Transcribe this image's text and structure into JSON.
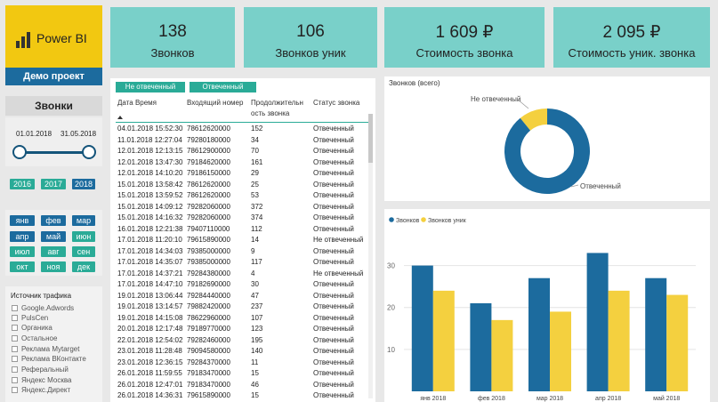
{
  "brand": {
    "name": "Power BI",
    "project": "Демо проект"
  },
  "sidebar": {
    "title": "Звонки",
    "date_from": "01.01.2018",
    "date_to": "31.05.2018",
    "years": [
      "2016",
      "2017",
      "2018"
    ],
    "months": [
      "янв",
      "фев",
      "мар",
      "апр",
      "май",
      "июн",
      "июл",
      "авг",
      "сен",
      "окт",
      "ноя",
      "дек"
    ],
    "traffic_title": "Источник трафика",
    "traffic_sources": [
      "Google.Adwords",
      "PulsCen",
      "Органика",
      "Остальное",
      "Реклама Mytarget",
      "Реклама ВКонтакте",
      "Реферальный",
      "Яндекс Москва",
      "Яндекс.Директ"
    ]
  },
  "kpis": [
    {
      "value": "138",
      "label": "Звонков"
    },
    {
      "value": "106",
      "label": "Звонков уник"
    },
    {
      "value": "1 609 ₽",
      "label": "Стоимость звонка"
    },
    {
      "value": "2 095 ₽",
      "label": "Стоимость уник. звонка"
    }
  ],
  "table": {
    "legend": [
      "Не отвеченный",
      "Отвеченный"
    ],
    "headers": {
      "date": "Дата Время",
      "number": "Входящий номер",
      "duration_1": "Продолжительн",
      "duration_2": "ость звонка",
      "status": "Статус звонка"
    },
    "rows": [
      [
        "04.01.2018 15:52:30",
        "78612620000",
        "152",
        "Отвеченный"
      ],
      [
        "11.01.2018 12:27:04",
        "79280180000",
        "34",
        "Отвеченный"
      ],
      [
        "12.01.2018 12:13:15",
        "78612900000",
        "70",
        "Отвеченный"
      ],
      [
        "12.01.2018 13:47:30",
        "79184620000",
        "161",
        "Отвеченный"
      ],
      [
        "12.01.2018 14:10:20",
        "79186150000",
        "29",
        "Отвеченный"
      ],
      [
        "15.01.2018 13:58:42",
        "78612620000",
        "25",
        "Отвеченный"
      ],
      [
        "15.01.2018 13:59:52",
        "78612620000",
        "53",
        "Отвеченный"
      ],
      [
        "15.01.2018 14:09:12",
        "79282060000",
        "372",
        "Отвеченный"
      ],
      [
        "15.01.2018 14:16:32",
        "79282060000",
        "374",
        "Отвеченный"
      ],
      [
        "16.01.2018 12:21:38",
        "79407110000",
        "112",
        "Отвеченный"
      ],
      [
        "17.01.2018 11:20:10",
        "79615890000",
        "14",
        "Не отвеченный"
      ],
      [
        "17.01.2018 14:34:03",
        "79385000000",
        "9",
        "Отвеченный"
      ],
      [
        "17.01.2018 14:35:07",
        "79385000000",
        "117",
        "Отвеченный"
      ],
      [
        "17.01.2018 14:37:21",
        "79284380000",
        "4",
        "Не отвеченный"
      ],
      [
        "17.01.2018 14:47:10",
        "79182690000",
        "30",
        "Отвеченный"
      ],
      [
        "19.01.2018 13:06:44",
        "79284440000",
        "47",
        "Отвеченный"
      ],
      [
        "19.01.2018 13:14:57",
        "79882420000",
        "237",
        "Отвеченный"
      ],
      [
        "19.01.2018 14:15:08",
        "78622960000",
        "107",
        "Отвеченный"
      ],
      [
        "20.01.2018 12:17:48",
        "79189770000",
        "123",
        "Отвеченный"
      ],
      [
        "22.01.2018 12:54:02",
        "79282460000",
        "195",
        "Отвеченный"
      ],
      [
        "23.01.2018 11:28:48",
        "79094580000",
        "140",
        "Отвеченный"
      ],
      [
        "23.01.2018 12:36:15",
        "79284370000",
        "11",
        "Отвеченный"
      ],
      [
        "26.01.2018 11:59:55",
        "79183470000",
        "15",
        "Отвеченный"
      ],
      [
        "26.01.2018 12:47:01",
        "79183470000",
        "46",
        "Отвеченный"
      ],
      [
        "26.01.2018 14:36:31",
        "79615890000",
        "15",
        "Отвеченный"
      ]
    ]
  },
  "donut": {
    "title": "Звонков (всего)"
  },
  "bars": {
    "legend_1": "Звонков",
    "legend_2": "Звонков уник"
  },
  "colors": {
    "blue": "#1c6b9e",
    "yellow": "#f4d03f",
    "teal": "#2aab97",
    "kpi": "#79d0c9"
  },
  "chart_data": [
    {
      "type": "pie",
      "title": "Звонков (всего)",
      "labels": [
        "Не отвеченный",
        "Отвеченный"
      ],
      "values": [
        15,
        123
      ]
    },
    {
      "type": "bar",
      "categories": [
        "янв 2018",
        "фев 2018",
        "мар 2018",
        "апр 2018",
        "май 2018"
      ],
      "series": [
        {
          "name": "Звонков",
          "values": [
            30,
            21,
            27,
            33,
            27
          ]
        },
        {
          "name": "Звонков уник",
          "values": [
            24,
            17,
            19,
            24,
            23
          ]
        }
      ],
      "yticks": [
        10,
        20,
        30
      ],
      "ylim": [
        0,
        35
      ],
      "legend": "top-left",
      "grid": true
    }
  ]
}
